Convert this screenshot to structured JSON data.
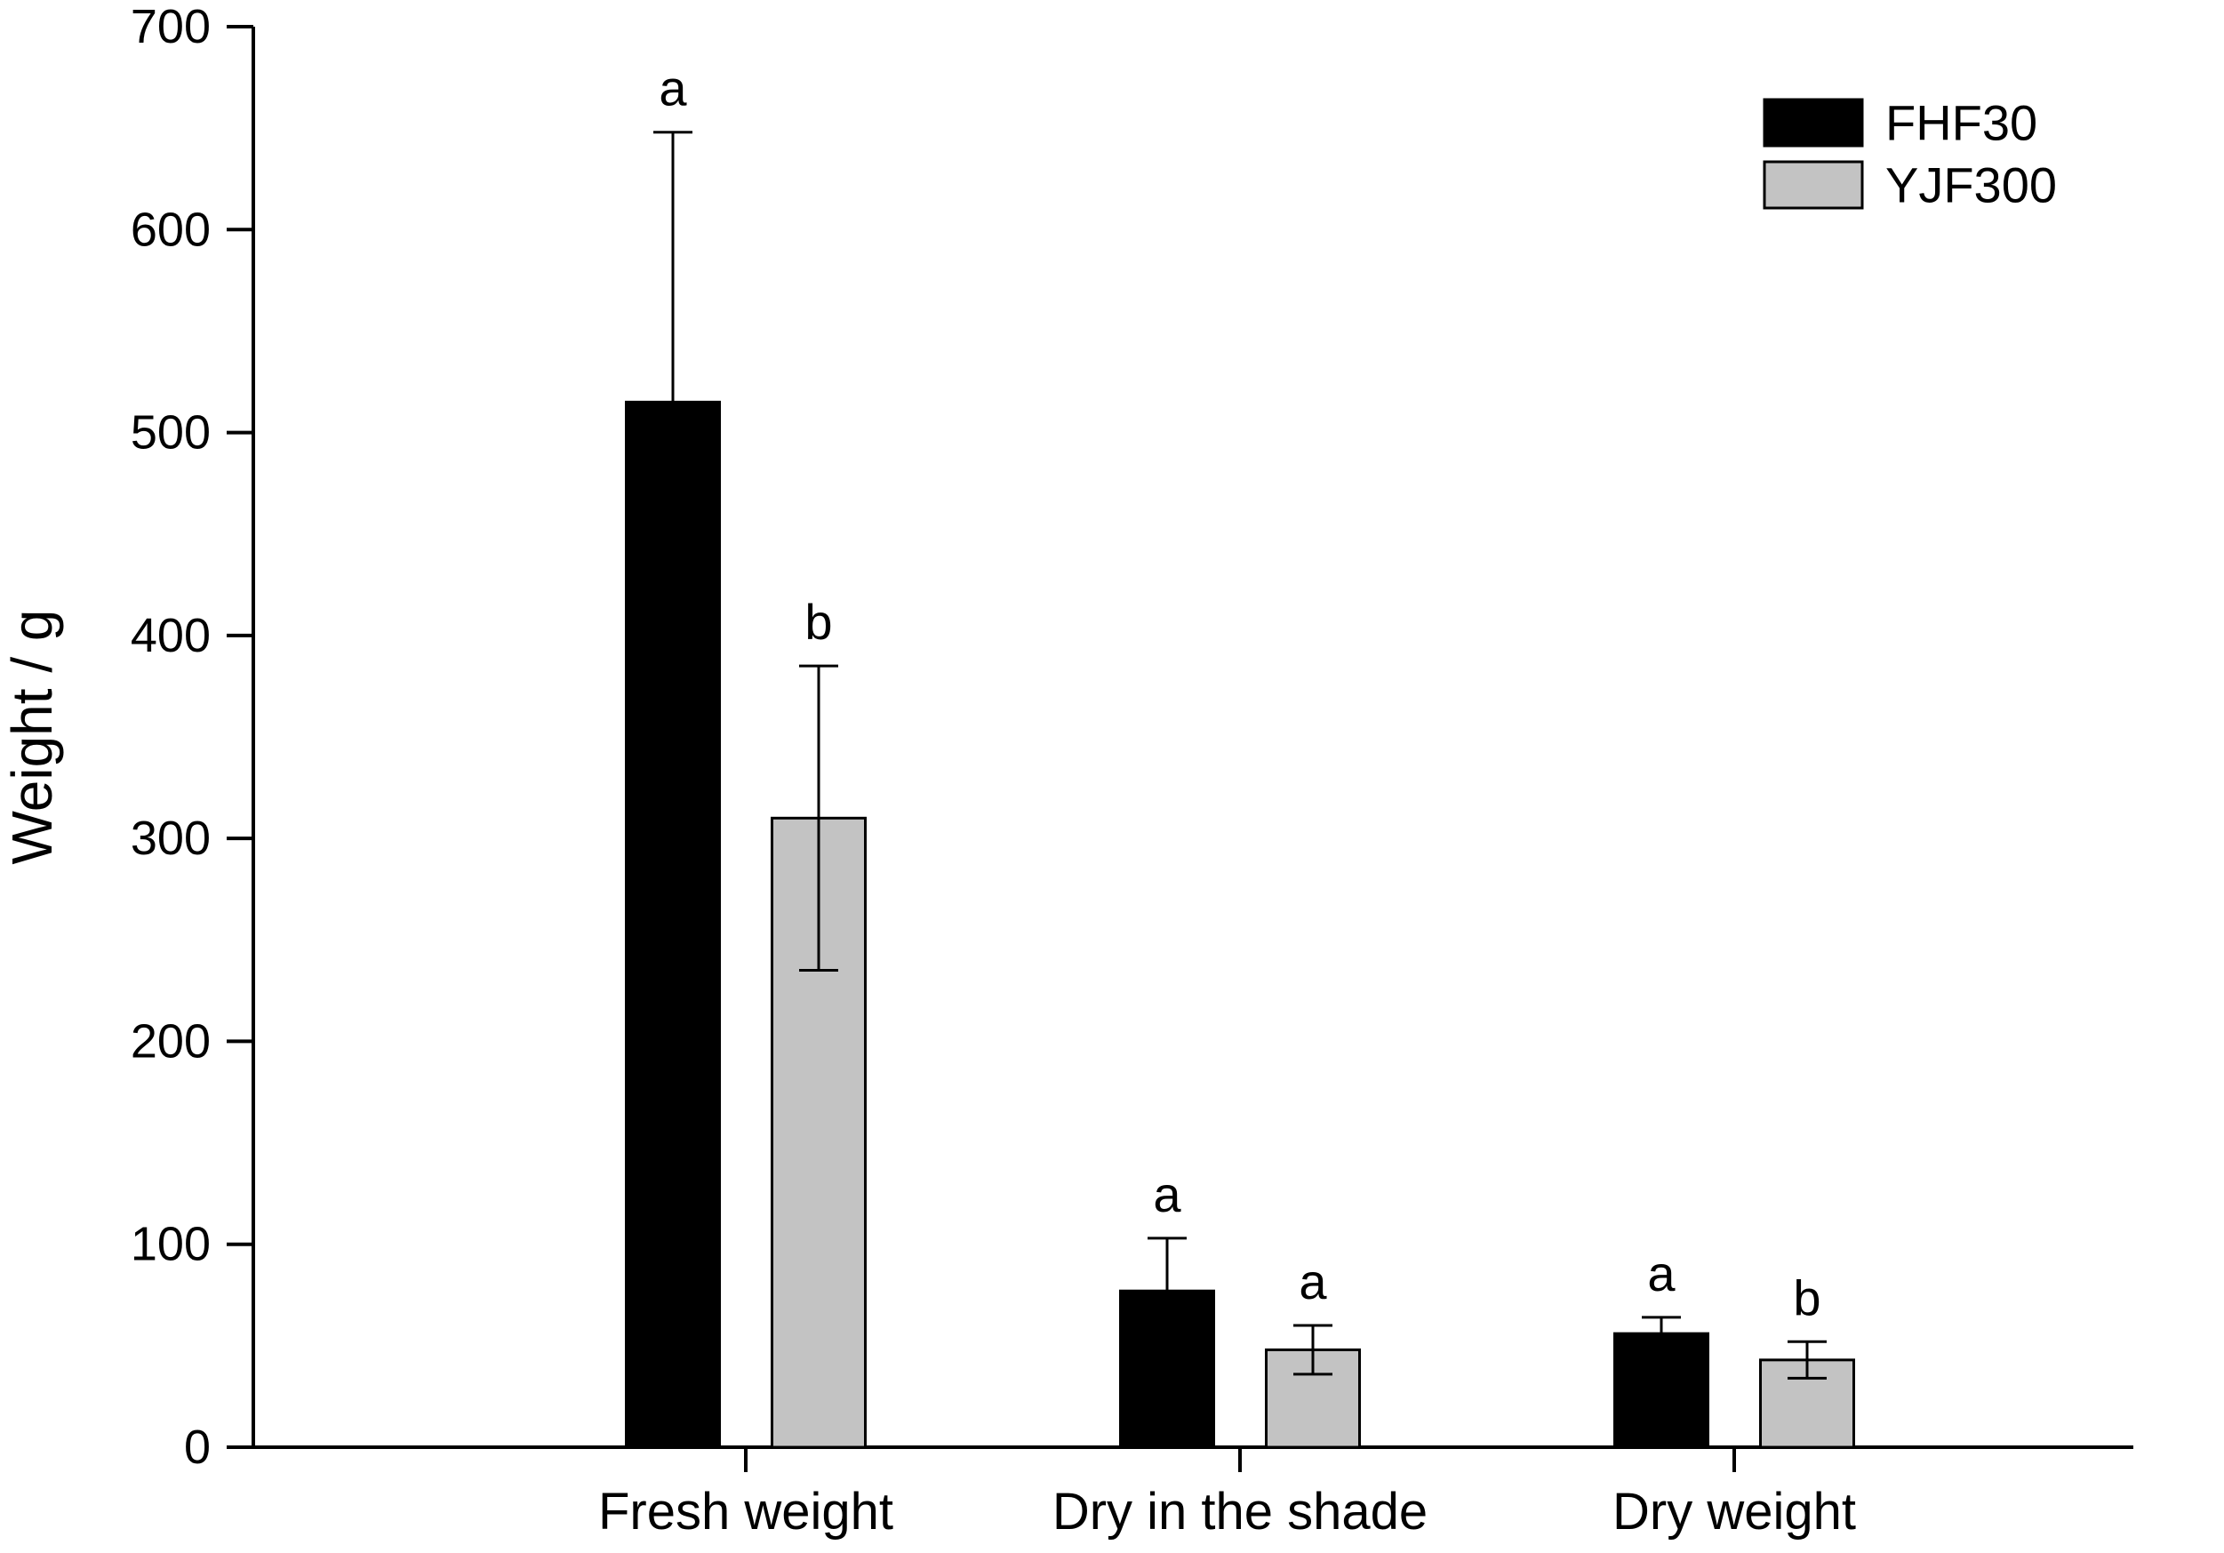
{
  "chart_data": {
    "type": "bar",
    "title": "",
    "xlabel": "",
    "ylabel": "Weight / g",
    "ylim": [
      0,
      700
    ],
    "yticks": [
      0,
      100,
      200,
      300,
      400,
      500,
      600,
      700
    ],
    "grid": false,
    "error_bars": true,
    "categories": [
      "Fresh weight",
      "Dry in the shade",
      "Dry weight"
    ],
    "series": [
      {
        "name": "FHF30",
        "color": "#000000",
        "values": [
          515,
          77,
          56
        ],
        "error_upper": [
          133,
          26,
          8
        ],
        "error_lower": [
          133,
          26,
          8
        ],
        "sig_letters": [
          "a",
          "a",
          "a"
        ]
      },
      {
        "name": "YJF300",
        "color": "#c3c3c3",
        "values": [
          310,
          48,
          43
        ],
        "error_upper": [
          75,
          12,
          9
        ],
        "error_lower": [
          75,
          12,
          9
        ],
        "sig_letters": [
          "b",
          "a",
          "b"
        ]
      }
    ],
    "legend": {
      "position": "top-right",
      "entries": [
        "FHF30",
        "YJF300"
      ]
    }
  }
}
